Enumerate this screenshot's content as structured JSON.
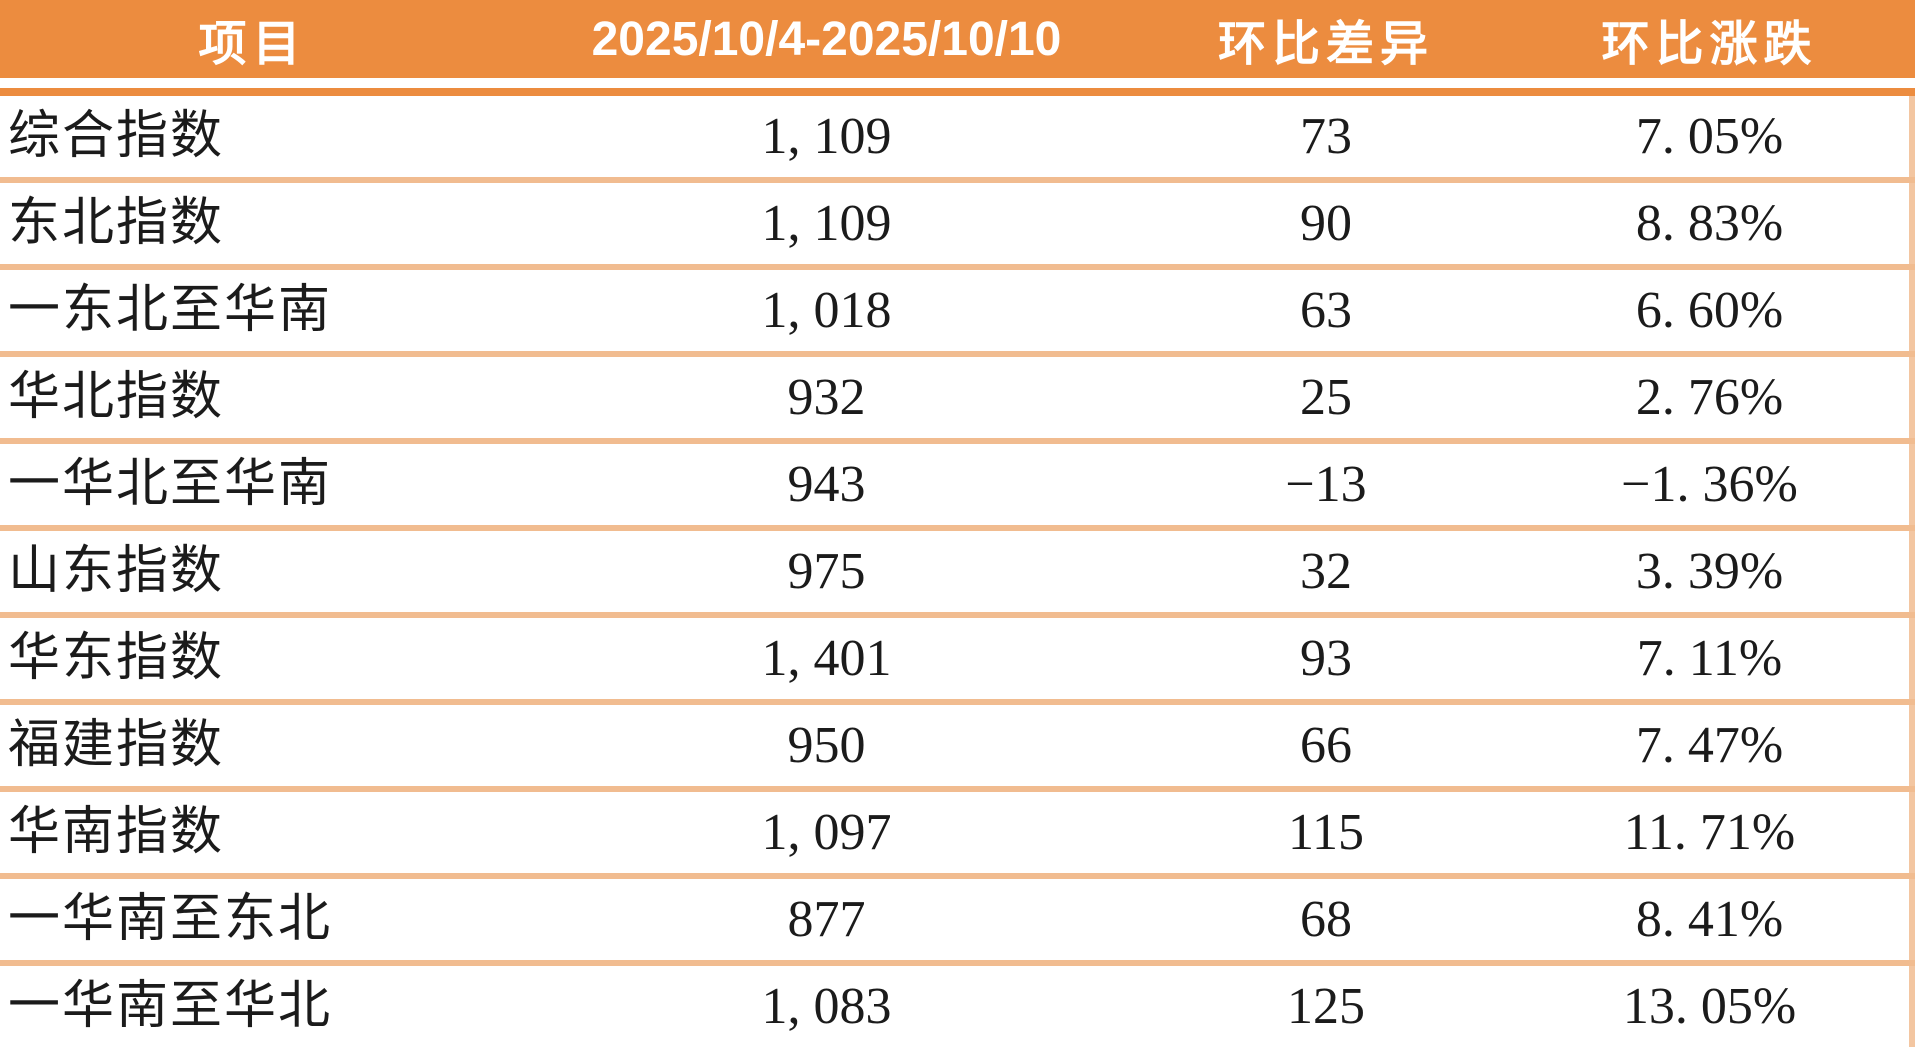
{
  "table": {
    "columns": [
      "项目",
      "2025/10/4-2025/10/10",
      "环比差异",
      "环比涨跌"
    ],
    "rows": [
      {
        "item": "综合指数",
        "value": "1, 109",
        "diff": "73",
        "pct": "7. 05%"
      },
      {
        "item": "东北指数",
        "value": "1, 109",
        "diff": "90",
        "pct": "8. 83%"
      },
      {
        "item": "一东北至华南",
        "value": "1, 018",
        "diff": "63",
        "pct": "6. 60%"
      },
      {
        "item": "华北指数",
        "value": "932",
        "diff": "25",
        "pct": "2. 76%"
      },
      {
        "item": "一华北至华南",
        "value": "943",
        "diff": "−13",
        "pct": "−1. 36%"
      },
      {
        "item": "山东指数",
        "value": "975",
        "diff": "32",
        "pct": "3. 39%"
      },
      {
        "item": "华东指数",
        "value": "1, 401",
        "diff": "93",
        "pct": "7. 11%"
      },
      {
        "item": "福建指数",
        "value": "950",
        "diff": "66",
        "pct": "7. 47%"
      },
      {
        "item": "华南指数",
        "value": "1, 097",
        "diff": "115",
        "pct": "11. 71%"
      },
      {
        "item": "一华南至东北",
        "value": "877",
        "diff": "68",
        "pct": "8. 41%"
      },
      {
        "item": "一华南至华北",
        "value": "1, 083",
        "diff": "125",
        "pct": "13. 05%"
      }
    ]
  },
  "colors": {
    "header_bg": "#EC8C3F",
    "header_text": "#FFFFFF",
    "divider": "#F1BC90",
    "row_bg": "#FFFFFF",
    "text": "#1B1B1B"
  },
  "chart_data": {
    "type": "table",
    "title": "",
    "columns": [
      "项目",
      "2025/10/4-2025/10/10",
      "环比差异",
      "环比涨跌"
    ],
    "categories": [
      "综合指数",
      "东北指数",
      "一东北至华南",
      "华北指数",
      "一华北至华南",
      "山东指数",
      "华东指数",
      "福建指数",
      "华南指数",
      "一华南至东北",
      "一华南至华北"
    ],
    "series": [
      {
        "name": "2025/10/4-2025/10/10",
        "values": [
          1109,
          1109,
          1018,
          932,
          943,
          975,
          1401,
          950,
          1097,
          877,
          1083
        ]
      },
      {
        "name": "环比差异",
        "values": [
          73,
          90,
          63,
          25,
          -13,
          32,
          93,
          66,
          115,
          68,
          125
        ]
      },
      {
        "name": "环比涨跌",
        "values": [
          "7.05%",
          "8.83%",
          "6.60%",
          "2.76%",
          "-1.36%",
          "3.39%",
          "7.11%",
          "7.47%",
          "11.71%",
          "8.41%",
          "13.05%"
        ]
      }
    ]
  }
}
